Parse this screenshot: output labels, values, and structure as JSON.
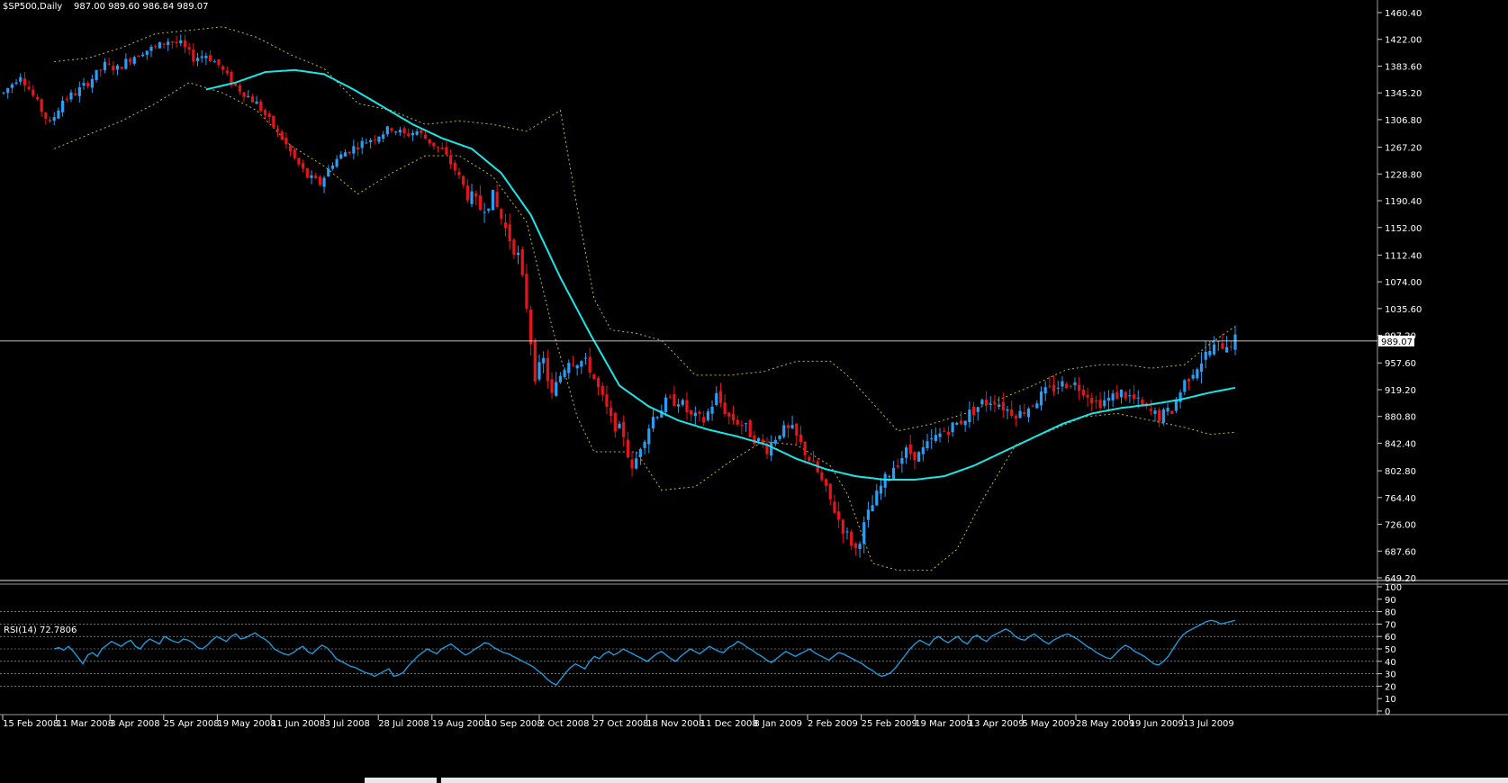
{
  "header": {
    "symbol": "$SP500,Daily",
    "ohlc": "987.00 989.60 986.84 989.07"
  },
  "rsi_label": "RSI(14) 72.7806",
  "colors": {
    "background": "#000000",
    "up_candle": "#2a9df4",
    "down_candle": "#e8141b",
    "moving_average": "#19e6e6",
    "bollinger": "#c8b432",
    "rsi_line": "#1aa3e8",
    "price_line": "#ffffff",
    "grid": "#ffffff"
  },
  "chart_data": [
    {
      "type": "candlestick",
      "title": "$SP500,Daily",
      "current_price": "989.07",
      "ylim": [
        649.2,
        1460.4
      ],
      "y_ticks": [
        "1460.40",
        "1422.00",
        "1383.60",
        "1345.20",
        "1306.80",
        "1267.20",
        "1228.80",
        "1190.40",
        "1152.00",
        "1112.40",
        "1074.00",
        "1035.60",
        "997.20",
        "957.60",
        "919.20",
        "880.80",
        "842.40",
        "802.80",
        "764.40",
        "726.00",
        "687.60",
        "649.20"
      ],
      "x_ticks": [
        "15 Feb 2008",
        "11 Mar 2008",
        "3 Apr 2008",
        "25 Apr 2008",
        "19 May 2008",
        "11 Jun 2008",
        "3 Jul 2008",
        "28 Jul 2008",
        "19 Aug 2008",
        "10 Sep 2008",
        "2 Oct 2008",
        "27 Oct 2008",
        "18 Nov 2008",
        "11 Dec 2008",
        "8 Jan 2009",
        "2 Feb 2009",
        "25 Feb 2009",
        "19 Mar 2009",
        "13 Apr 2009",
        "5 May 2009",
        "28 May 2009",
        "19 Jun 2009",
        "13 Jul 2009"
      ],
      "price_path": [
        [
          0,
          1345
        ],
        [
          4,
          1372
        ],
        [
          8,
          1330
        ],
        [
          11,
          1300
        ],
        [
          14,
          1335
        ],
        [
          17,
          1345
        ],
        [
          20,
          1360
        ],
        [
          24,
          1385
        ],
        [
          27,
          1380
        ],
        [
          30,
          1395
        ],
        [
          33,
          1405
        ],
        [
          36,
          1410
        ],
        [
          39,
          1420
        ],
        [
          42,
          1415
        ],
        [
          45,
          1395
        ],
        [
          48,
          1400
        ],
        [
          51,
          1385
        ],
        [
          54,
          1360
        ],
        [
          57,
          1345
        ],
        [
          60,
          1330
        ],
        [
          63,
          1305
        ],
        [
          66,
          1280
        ],
        [
          69,
          1250
        ],
        [
          72,
          1225
        ],
        [
          75,
          1215
        ],
        [
          78,
          1245
        ],
        [
          81,
          1260
        ],
        [
          84,
          1270
        ],
        [
          88,
          1282
        ],
        [
          92,
          1295
        ],
        [
          95,
          1285
        ],
        [
          98,
          1290
        ],
        [
          101,
          1275
        ],
        [
          104,
          1262
        ],
        [
          107,
          1235
        ],
        [
          110,
          1200
        ],
        [
          113,
          1180
        ],
        [
          116,
          1195
        ],
        [
          119,
          1150
        ],
        [
          122,
          1110
        ],
        [
          124,
          1040
        ],
        [
          126,
          940
        ],
        [
          128,
          960
        ],
        [
          130,
          910
        ],
        [
          132,
          940
        ],
        [
          134,
          965
        ],
        [
          137,
          960
        ],
        [
          139,
          950
        ],
        [
          141,
          920
        ],
        [
          144,
          875
        ],
        [
          147,
          855
        ],
        [
          149,
          800
        ],
        [
          151,
          840
        ],
        [
          154,
          880
        ],
        [
          157,
          900
        ],
        [
          160,
          905
        ],
        [
          163,
          880
        ],
        [
          166,
          875
        ],
        [
          169,
          910
        ],
        [
          172,
          880
        ],
        [
          175,
          870
        ],
        [
          178,
          850
        ],
        [
          181,
          835
        ],
        [
          184,
          860
        ],
        [
          187,
          860
        ],
        [
          190,
          830
        ],
        [
          193,
          800
        ],
        [
          196,
          760
        ],
        [
          199,
          720
        ],
        [
          202,
          690
        ],
        [
          205,
          740
        ],
        [
          208,
          780
        ],
        [
          211,
          810
        ],
        [
          214,
          830
        ],
        [
          217,
          825
        ],
        [
          220,
          845
        ],
        [
          223,
          860
        ],
        [
          226,
          870
        ],
        [
          229,
          885
        ],
        [
          232,
          900
        ],
        [
          235,
          905
        ],
        [
          238,
          890
        ],
        [
          241,
          885
        ],
        [
          244,
          900
        ],
        [
          247,
          915
        ],
        [
          250,
          925
        ],
        [
          253,
          930
        ],
        [
          256,
          920
        ],
        [
          259,
          900
        ],
        [
          262,
          905
        ],
        [
          265,
          915
        ],
        [
          268,
          905
        ],
        [
          271,
          890
        ],
        [
          274,
          880
        ],
        [
          277,
          890
        ],
        [
          280,
          930
        ],
        [
          283,
          955
        ],
        [
          286,
          975
        ],
        [
          289,
          985
        ],
        [
          292,
          989
        ]
      ],
      "ma_path": [
        [
          48,
          1350
        ],
        [
          55,
          1360
        ],
        [
          62,
          1375
        ],
        [
          69,
          1378
        ],
        [
          76,
          1372
        ],
        [
          83,
          1350
        ],
        [
          90,
          1325
        ],
        [
          97,
          1300
        ],
        [
          104,
          1280
        ],
        [
          111,
          1265
        ],
        [
          118,
          1230
        ],
        [
          125,
          1170
        ],
        [
          132,
          1080
        ],
        [
          139,
          1000
        ],
        [
          146,
          925
        ],
        [
          153,
          895
        ],
        [
          160,
          875
        ],
        [
          167,
          862
        ],
        [
          174,
          852
        ],
        [
          181,
          840
        ],
        [
          188,
          820
        ],
        [
          195,
          805
        ],
        [
          202,
          795
        ],
        [
          209,
          790
        ],
        [
          216,
          790
        ],
        [
          223,
          795
        ],
        [
          230,
          810
        ],
        [
          237,
          830
        ],
        [
          244,
          850
        ],
        [
          251,
          870
        ],
        [
          258,
          885
        ],
        [
          265,
          893
        ],
        [
          272,
          898
        ],
        [
          279,
          905
        ],
        [
          286,
          915
        ],
        [
          292,
          922
        ]
      ],
      "bb_upper_path": [
        [
          12,
          1390
        ],
        [
          20,
          1395
        ],
        [
          28,
          1410
        ],
        [
          36,
          1430
        ],
        [
          44,
          1435
        ],
        [
          52,
          1440
        ],
        [
          60,
          1425
        ],
        [
          68,
          1400
        ],
        [
          76,
          1380
        ],
        [
          84,
          1330
        ],
        [
          92,
          1320
        ],
        [
          100,
          1300
        ],
        [
          108,
          1305
        ],
        [
          116,
          1300
        ],
        [
          124,
          1290
        ],
        [
          132,
          1320
        ],
        [
          136,
          1180
        ],
        [
          140,
          1050
        ],
        [
          144,
          1005
        ],
        [
          150,
          1000
        ],
        [
          156,
          990
        ],
        [
          164,
          940
        ],
        [
          172,
          940
        ],
        [
          180,
          945
        ],
        [
          188,
          960
        ],
        [
          196,
          960
        ],
        [
          200,
          940
        ],
        [
          206,
          900
        ],
        [
          212,
          860
        ],
        [
          220,
          870
        ],
        [
          228,
          885
        ],
        [
          236,
          905
        ],
        [
          244,
          925
        ],
        [
          252,
          948
        ],
        [
          260,
          955
        ],
        [
          266,
          955
        ],
        [
          272,
          950
        ],
        [
          280,
          955
        ],
        [
          286,
          985
        ],
        [
          292,
          1010
        ]
      ],
      "bb_lower_path": [
        [
          12,
          1265
        ],
        [
          20,
          1285
        ],
        [
          28,
          1305
        ],
        [
          36,
          1330
        ],
        [
          44,
          1360
        ],
        [
          52,
          1345
        ],
        [
          60,
          1320
        ],
        [
          68,
          1270
        ],
        [
          76,
          1240
        ],
        [
          84,
          1200
        ],
        [
          92,
          1230
        ],
        [
          100,
          1255
        ],
        [
          108,
          1255
        ],
        [
          116,
          1225
        ],
        [
          124,
          1160
        ],
        [
          130,
          1010
        ],
        [
          136,
          880
        ],
        [
          140,
          830
        ],
        [
          144,
          830
        ],
        [
          150,
          830
        ],
        [
          156,
          775
        ],
        [
          164,
          780
        ],
        [
          172,
          815
        ],
        [
          180,
          845
        ],
        [
          188,
          840
        ],
        [
          196,
          810
        ],
        [
          200,
          770
        ],
        [
          206,
          670
        ],
        [
          212,
          660
        ],
        [
          220,
          660
        ],
        [
          226,
          690
        ],
        [
          232,
          760
        ],
        [
          240,
          840
        ],
        [
          248,
          860
        ],
        [
          256,
          880
        ],
        [
          264,
          885
        ],
        [
          272,
          875
        ],
        [
          280,
          865
        ],
        [
          286,
          855
        ],
        [
          292,
          858
        ]
      ],
      "rsi_levels": [
        "100",
        "90",
        "80",
        "70",
        "60",
        "50",
        "40",
        "30",
        "20",
        "10",
        "0"
      ],
      "rsi_values": [
        50,
        51,
        49,
        52,
        48,
        43,
        38,
        45,
        47,
        44,
        50,
        53,
        56,
        54,
        52,
        55,
        57,
        52,
        50,
        55,
        58,
        56,
        54,
        60,
        58,
        56,
        55,
        58,
        57,
        55,
        51,
        50,
        53,
        57,
        60,
        58,
        56,
        60,
        62,
        58,
        59,
        61,
        63,
        60,
        58,
        55,
        50,
        48,
        46,
        45,
        47,
        50,
        52,
        48,
        46,
        50,
        53,
        51,
        47,
        42,
        40,
        38,
        36,
        35,
        33,
        31,
        30,
        28,
        30,
        32,
        34,
        28,
        29,
        31,
        36,
        40,
        44,
        47,
        50,
        48,
        46,
        50,
        52,
        54,
        51,
        48,
        45,
        47,
        50,
        52,
        55,
        54,
        51,
        49,
        47,
        46,
        44,
        42,
        40,
        38,
        36,
        33,
        30,
        26,
        23,
        21,
        26,
        31,
        35,
        38,
        36,
        34,
        40,
        44,
        42,
        46,
        48,
        45,
        47,
        50,
        48,
        46,
        44,
        42,
        40,
        43,
        46,
        48,
        45,
        42,
        40,
        44,
        47,
        50,
        48,
        46,
        49,
        52,
        50,
        48,
        47,
        51,
        53,
        56,
        54,
        51,
        49,
        46,
        44,
        41,
        39,
        42,
        45,
        48,
        46,
        44,
        46,
        48,
        50,
        47,
        45,
        43,
        41,
        44,
        47,
        46,
        44,
        42,
        40,
        38,
        35,
        33,
        30,
        28,
        29,
        31,
        35,
        40,
        45,
        50,
        54,
        57,
        55,
        53,
        58,
        60,
        57,
        55,
        58,
        60,
        56,
        54,
        59,
        61,
        58,
        56,
        60,
        62,
        64,
        66,
        64,
        60,
        58,
        57,
        60,
        62,
        59,
        56,
        54,
        57,
        59,
        61,
        62,
        60,
        58,
        55,
        52,
        50,
        47,
        45,
        43,
        42,
        46,
        50,
        53,
        51,
        48,
        46,
        44,
        41,
        38,
        37,
        40,
        44,
        50,
        56,
        61,
        64,
        66,
        68,
        70,
        72,
        73,
        72,
        70,
        71,
        72,
        73
      ]
    }
  ]
}
